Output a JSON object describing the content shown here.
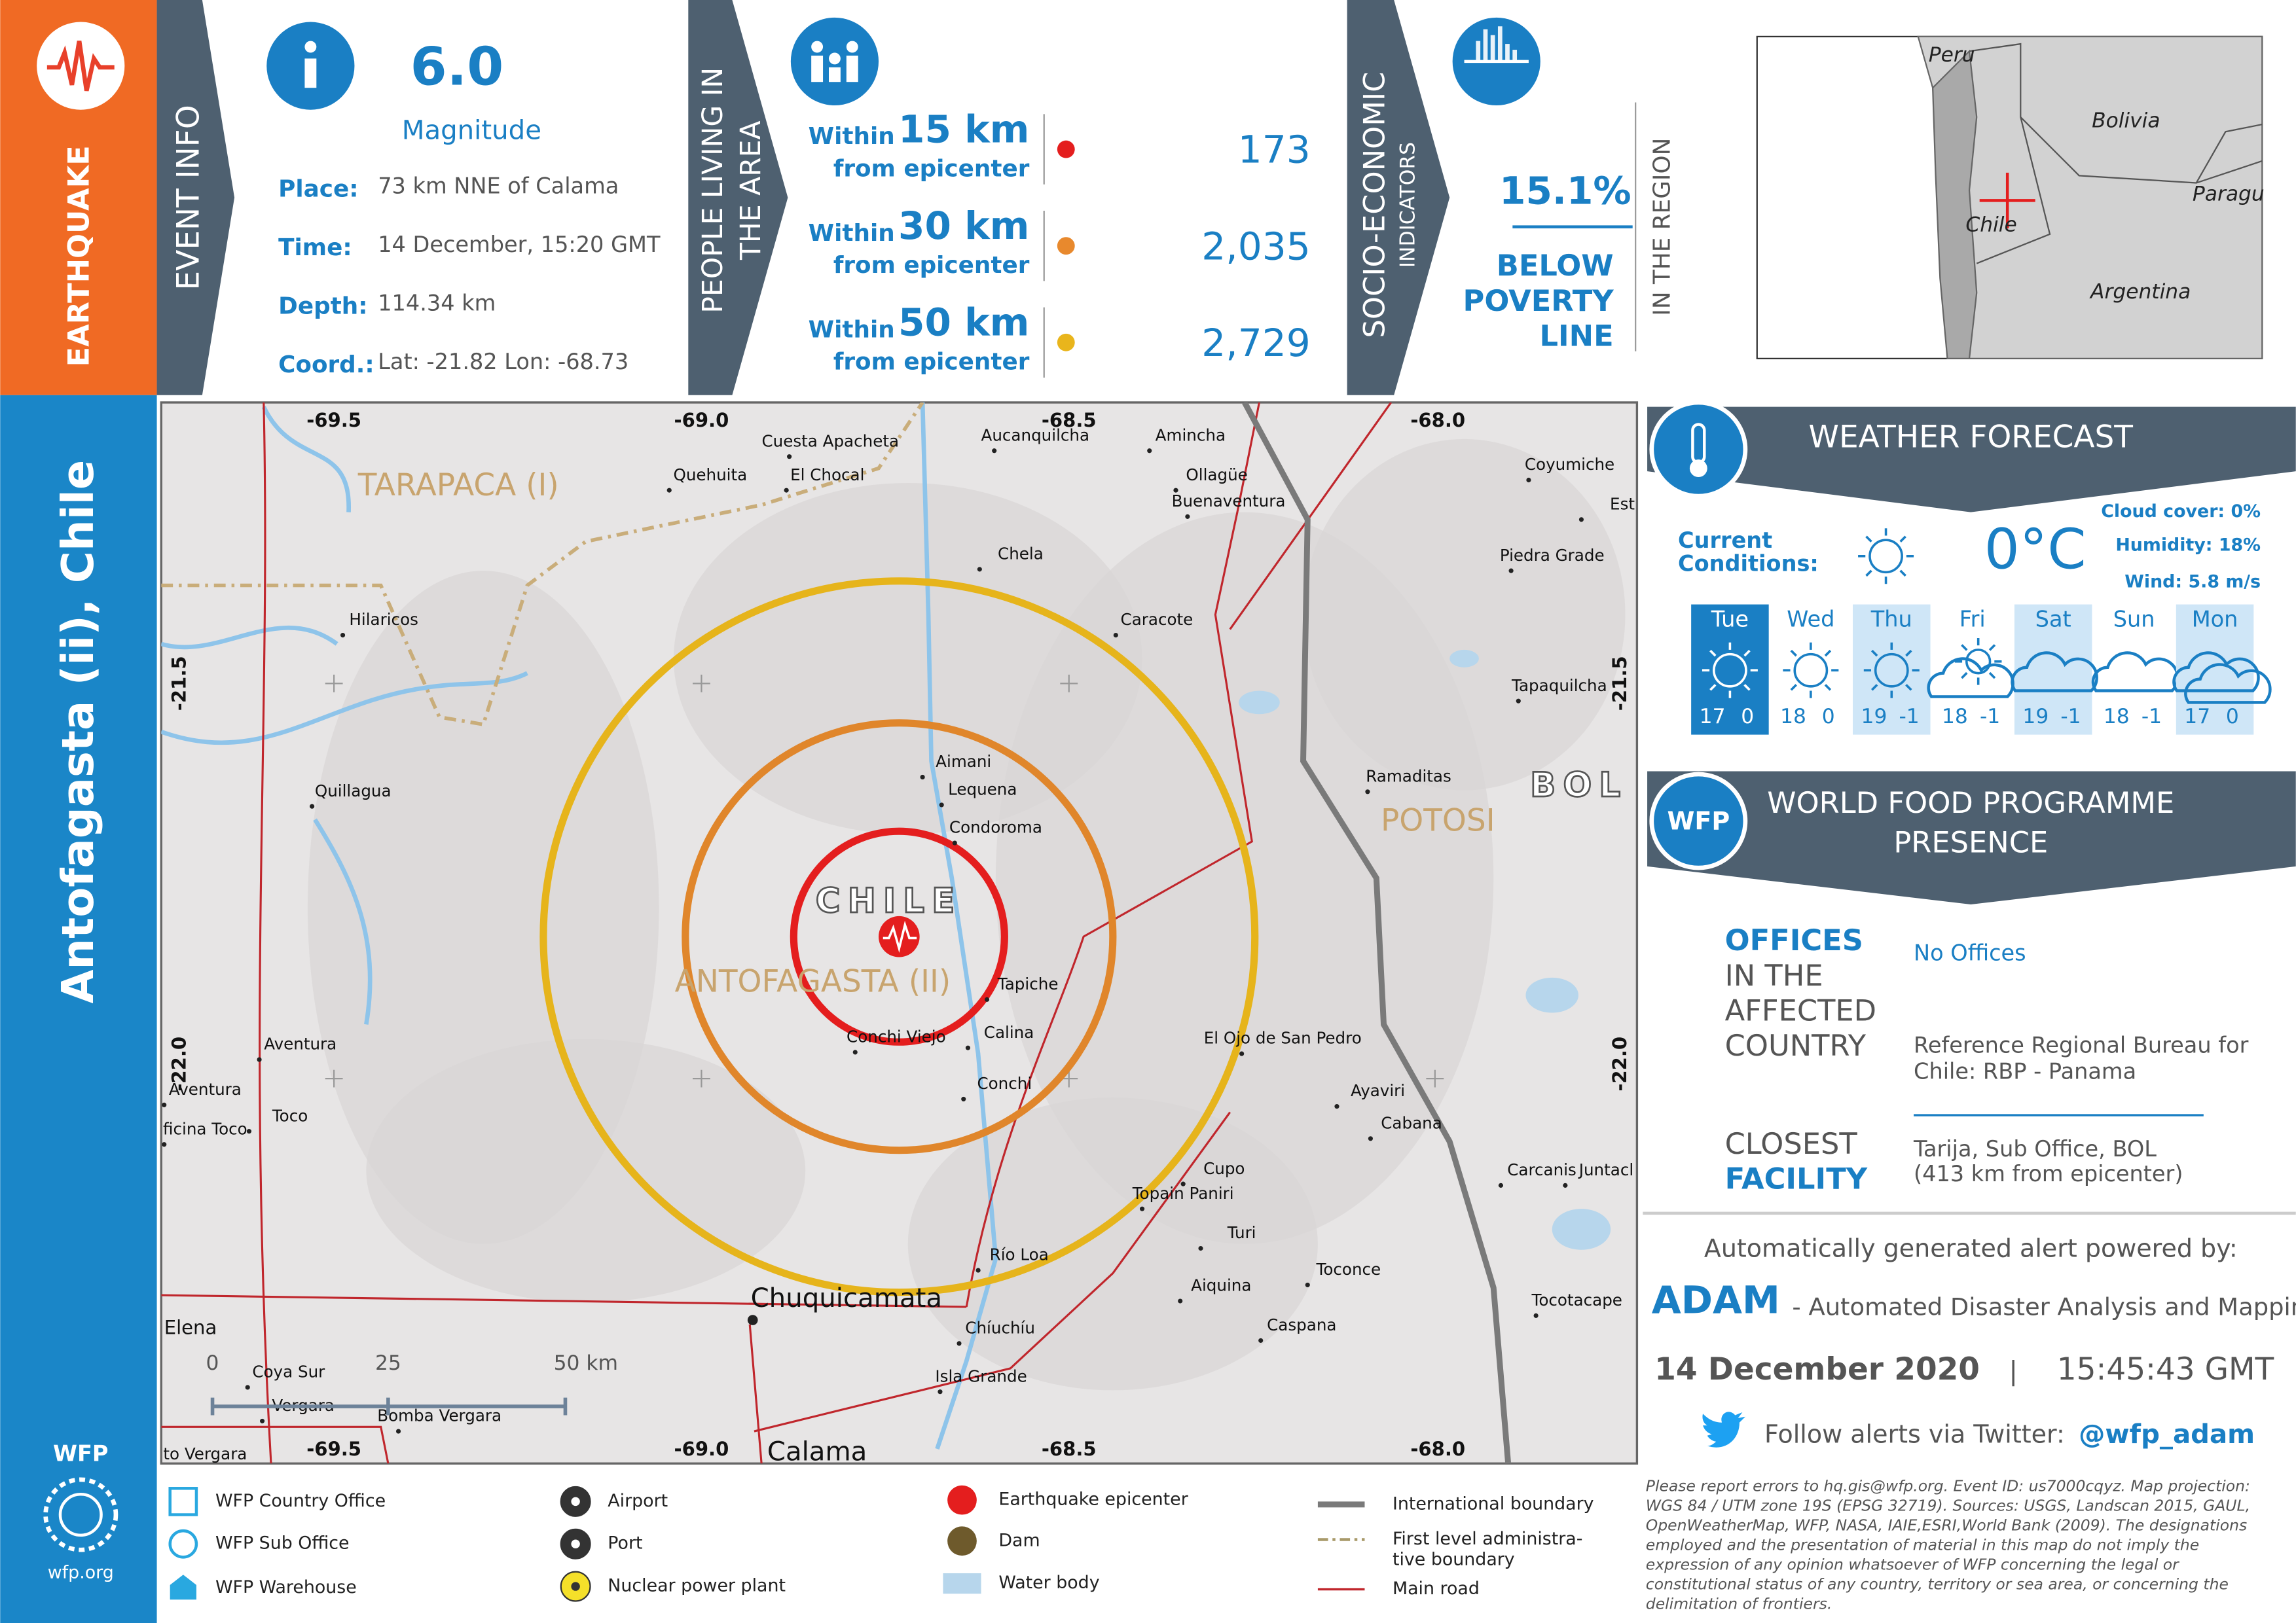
{
  "sidebar": {
    "hazard": "EARTHQUAKE",
    "location": "Antofagasta (ii), Chile",
    "logo": "WFP",
    "site": "wfp.org"
  },
  "event_info": {
    "heading": "EVENT INFO",
    "magnitude": "6.0",
    "magnitude_label": "Magnitude",
    "rows": [
      {
        "label": "Place:",
        "value": "73 km NNE of Calama"
      },
      {
        "label": "Time:",
        "value": "14 December, 15:20 GMT"
      },
      {
        "label": "Depth:",
        "value": "114.34 km"
      },
      {
        "label": "Coord.:",
        "value": "Lat: -21.82   Lon: -68.73"
      }
    ]
  },
  "population": {
    "heading": [
      "PEOPLE LIVING IN",
      "THE AREA"
    ],
    "rows": [
      {
        "within": "Within",
        "distance": "15 km",
        "from": "from epicenter",
        "count": "173"
      },
      {
        "within": "Within",
        "distance": "30 km",
        "from": "from epicenter",
        "count": "2,035"
      },
      {
        "within": "Within",
        "distance": "50 km",
        "from": "from epicenter",
        "count": "2,729"
      }
    ]
  },
  "socio": {
    "heading": "SOCIO-ECONOMIC",
    "subheading": "INDICATORS",
    "value": "15.1%",
    "label": [
      "BELOW",
      "POVERTY",
      "LINE"
    ],
    "scope": "IN THE REGION"
  },
  "inset": {
    "labels": [
      "Peru",
      "Bolivia",
      "Paragu",
      "Chile",
      "Argentina"
    ]
  },
  "map": {
    "lon_ticks": [
      "-69.5",
      "-69.0",
      "-68.5",
      "-68.0"
    ],
    "lat_ticks": [
      "-21.5",
      "-22.0"
    ],
    "regions": [
      "TARAPACA (I)",
      "ANTOFAGASTA (II)",
      "POTOSI"
    ],
    "countries": [
      "CHILE",
      "BOL"
    ],
    "places": [
      "Cuesta Apacheta",
      "Quehuita",
      "El Chocal",
      "Aucanquilcha",
      "Amincha",
      "Ollagüe",
      "Buenaventura",
      "Coyumiche",
      "Est",
      "Chela",
      "Piedra Grade",
      "Hilaricos",
      "Caracote",
      "Tapaquilcha",
      "Aimani",
      "Ramaditas",
      "Quillagua",
      "Lequena",
      "Condoroma",
      "Tapiche",
      "Calina",
      "Conchi Viejo",
      "El Ojo de San Pedro",
      "Aventura",
      "Aventura",
      "Conchi",
      "Ayaviri",
      "Toco",
      "ficina Toco",
      "Cabana",
      "Cupo",
      "Carcanis",
      "Juntacl",
      "Topain Paniri",
      "Turi",
      "Toconce",
      "Río Loa",
      "Aiquina",
      "Tocotacape",
      "Chuquicamata",
      "Elena",
      "Caspana",
      "Chíuchíu",
      "Coya Sur",
      "Isla Grande",
      "Vergara",
      "Bomba Vergara",
      "to Vergara",
      "Calama"
    ],
    "scale": [
      "0",
      "25",
      "50 km"
    ]
  },
  "weather": {
    "heading": "WEATHER FORECAST",
    "current_label": [
      "Current",
      "Conditions:"
    ],
    "current_temp": "0°C",
    "details": [
      "Cloud cover: 0%",
      "Humidity: 18%",
      "Wind: 5.8 m/s"
    ],
    "days": [
      {
        "day": "Tue",
        "max": "17",
        "min": "0"
      },
      {
        "day": "Wed",
        "max": "18",
        "min": "0"
      },
      {
        "day": "Thu",
        "max": "19",
        "min": "-1"
      },
      {
        "day": "Fri",
        "max": "18",
        "min": "-1"
      },
      {
        "day": "Sat",
        "max": "19",
        "min": "-1"
      },
      {
        "day": "Sun",
        "max": "18",
        "min": "-1"
      },
      {
        "day": "Mon",
        "max": "17",
        "min": "0"
      }
    ]
  },
  "wfp": {
    "badge": "WFP",
    "heading": [
      "WORLD FOOD PROGRAMME",
      "PRESENCE"
    ],
    "offices_label": [
      "OFFICES",
      "IN THE",
      "AFFECTED",
      "COUNTRY"
    ],
    "offices_value": "No Offices",
    "reference": [
      "Reference Regional Bureau for",
      "Chile: RBP - Panama"
    ],
    "closest_label": [
      "CLOSEST",
      "FACILITY"
    ],
    "closest_value": [
      "Tarija, Sub Office, BOL",
      "(413 km from epicenter)"
    ]
  },
  "footer": {
    "powered": "Automatically generated alert powered by:",
    "brand": "ADAM",
    "brand_full": "- Automated Disaster Analysis and Mapping",
    "date": "14 December 2020",
    "separator": "|",
    "time": "15:45:43 GMT",
    "follow": "Follow alerts via Twitter:",
    "handle": "@wfp_adam",
    "disclaimer": [
      "Please report errors to hq.gis@wfp.org. Event ID: us7000cqyz. Map projection:",
      "WGS 84 / UTM zone 19S (EPSG 32719). Sources: USGS, Landscan 2015, GAUL,",
      "OpenWeatherMap, WFP, NASA, IAIE,ESRI,World Bank (2009). The designations",
      "employed and the presentation of material in this map do not imply the",
      "expression of any opinion whatsoever of WFP concerning the legal or",
      "constitutional status of any country, territory or sea area, or concerning the",
      "delimitation of frontiers."
    ]
  },
  "legend": [
    [
      "WFP Country Office"
    ],
    [
      "WFP Sub Office"
    ],
    [
      "WFP Warehouse"
    ],
    [
      "Airport"
    ],
    [
      "Port"
    ],
    [
      "Nuclear power plant"
    ],
    [
      "Earthquake epicenter"
    ],
    [
      "Dam"
    ],
    [
      "Water body"
    ],
    [
      "International boundary"
    ],
    [
      "First level administra-",
      "tive boundary"
    ],
    [
      "Main road"
    ]
  ]
}
